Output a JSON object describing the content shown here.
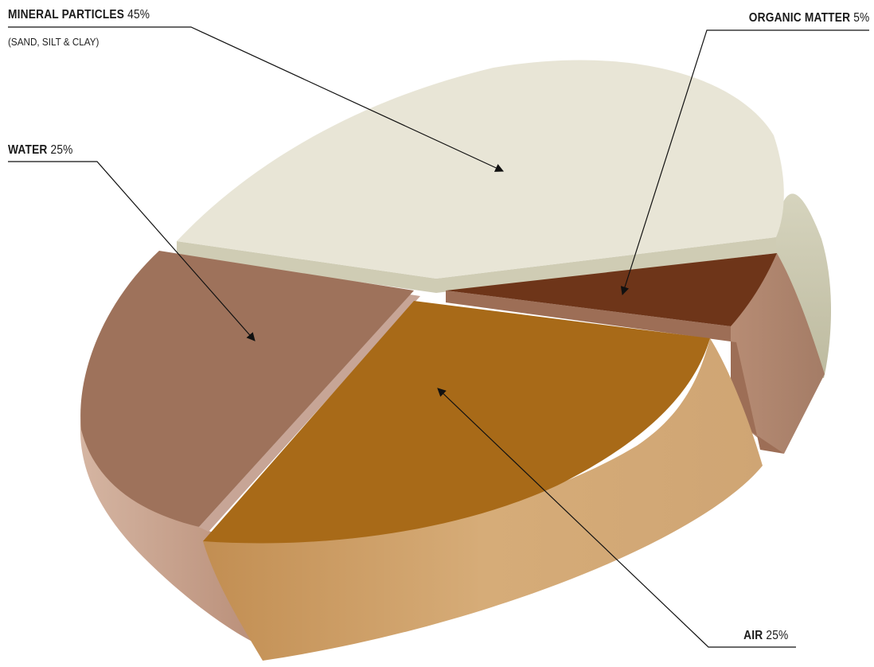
{
  "chart_data": {
    "type": "pie",
    "slices": [
      {
        "name": "MINERAL PARTICLES",
        "value": 45,
        "value_label": "45%",
        "note": "(SAND, SILT & CLAY)",
        "color": "#E8E5D6"
      },
      {
        "name": "ORGANIC MATTER",
        "value": 5,
        "value_label": "5%",
        "color": "#6E3519"
      },
      {
        "name": "AIR",
        "value": 25,
        "value_label": "25%",
        "color": "#A86A18"
      },
      {
        "name": "WATER",
        "value": 25,
        "value_label": "25%",
        "color": "#9E725B"
      }
    ]
  }
}
